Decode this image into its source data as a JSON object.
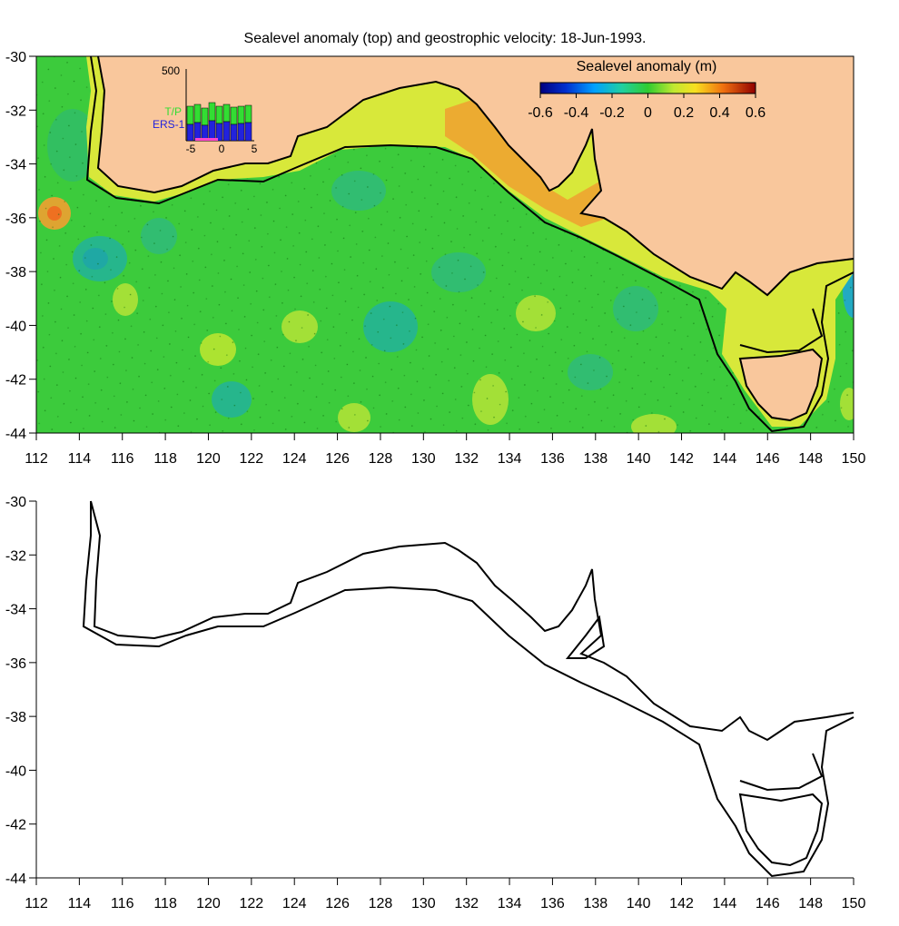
{
  "title": "Sealevel anomaly (top) and geostrophic velocity: 18-Jun-1993.",
  "top_panel": {
    "name": "Sealevel anomaly map",
    "x_ticks": [
      "112",
      "114",
      "116",
      "118",
      "120",
      "122",
      "124",
      "126",
      "128",
      "130",
      "132",
      "134",
      "136",
      "138",
      "140",
      "142",
      "144",
      "146",
      "148",
      "150"
    ],
    "y_ticks": [
      "-30",
      "-32",
      "-34",
      "-36",
      "-38",
      "-40",
      "-42",
      "-44"
    ],
    "colors": {
      "land": "#f9c79c",
      "ocean": "#3ccb3c",
      "coast_band": "#d8e83a",
      "warm_band": "#f0a030"
    },
    "colorbar": {
      "title": "Sealevel anomaly (m)",
      "ticks": [
        "-0.6",
        "-0.4",
        "-0.2",
        "0",
        "0.2",
        "0.4",
        "0.6"
      ],
      "range": [
        -0.6,
        0.6
      ]
    },
    "inset": {
      "ymax_label": "500",
      "x_ticks": [
        "-5",
        "0",
        "5"
      ],
      "legend": [
        {
          "label": "T/P",
          "color": "#33dd33"
        },
        {
          "label": "ERS-1",
          "color": "#2222dd"
        }
      ]
    }
  },
  "bottom_panel": {
    "name": "Geostrophic velocity map",
    "x_ticks": [
      "112",
      "114",
      "116",
      "118",
      "120",
      "122",
      "124",
      "126",
      "128",
      "130",
      "132",
      "134",
      "136",
      "138",
      "140",
      "142",
      "144",
      "146",
      "148",
      "150"
    ],
    "y_ticks": [
      "-30",
      "-32",
      "-34",
      "-36",
      "-38",
      "-40",
      "-42",
      "-44"
    ]
  },
  "map_data": {
    "lon_range": [
      112,
      150
    ],
    "lat_range": [
      -44,
      -30
    ]
  }
}
